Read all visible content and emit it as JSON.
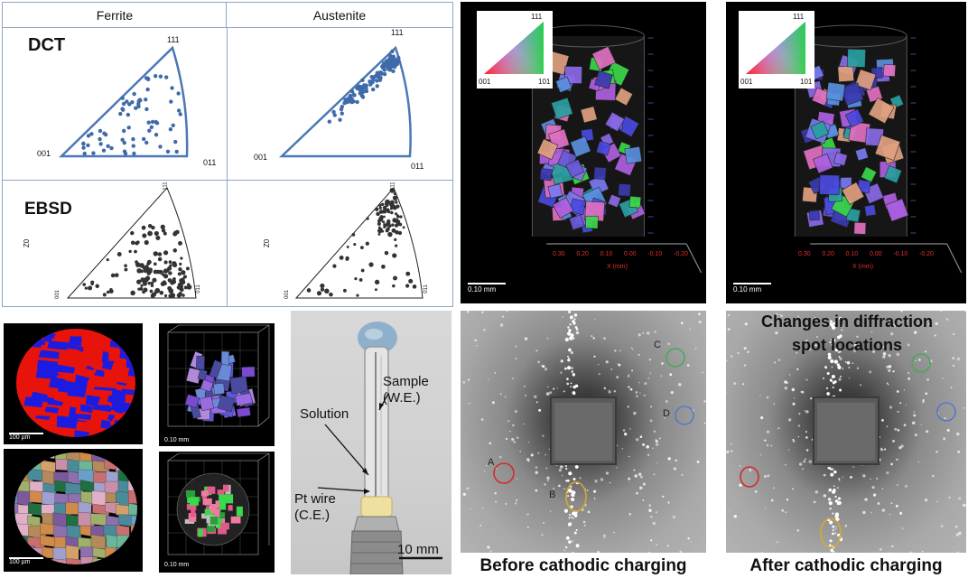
{
  "pole_figures": {
    "col_ferrite": "Ferrite",
    "col_austenite": "Austenite",
    "row_dct": "DCT",
    "row_ebsd": "EBSD",
    "pole_111": "111",
    "pole_001": "001",
    "pole_011": "011",
    "ebsd_side_label": "Z0",
    "ebsd_corner_111": "111",
    "ebsd_corner_001": "001",
    "ebsd_corner_011": "011"
  },
  "ipf_3d": {
    "legend_111": "111",
    "legend_001": "001",
    "legend_101": "101",
    "axis_x_label": "X (mm)",
    "x_ticks": [
      "0.30",
      "0.20",
      "0.10",
      "0.00",
      "-0.10",
      "-0.20"
    ],
    "scale_bar": "0.10 mm"
  },
  "maps": {
    "phase_scale": "100 µm",
    "grain_scale": "100 µm",
    "render_top_scale": "0.10 mm",
    "render_bottom_scale": "0.10 mm"
  },
  "cell": {
    "solution": "Solution",
    "sample_line1": "Sample",
    "sample_line2": "(W.E.)",
    "pt_line1": "Pt wire",
    "pt_line2": "(C.E.)",
    "scale": "10 mm"
  },
  "diffraction": {
    "spot_a": "A",
    "spot_b": "B",
    "spot_c": "C",
    "spot_d": "D",
    "changes_line1": "Changes in diffraction",
    "changes_line2": "spot locations",
    "before_caption": "Before cathodic charging",
    "after_caption": "After cathodic charging"
  },
  "colors": {
    "pole_outline": "#4a78b8",
    "dot_blue": "#3f6aa8",
    "ferrite_red": "#e8140c",
    "austenite_blue": "#1c1ce0",
    "circle_red": "#d42a2a",
    "circle_yellow": "#d8a830",
    "circle_green": "#4aa85a",
    "circle_blue": "#5a78c8"
  }
}
